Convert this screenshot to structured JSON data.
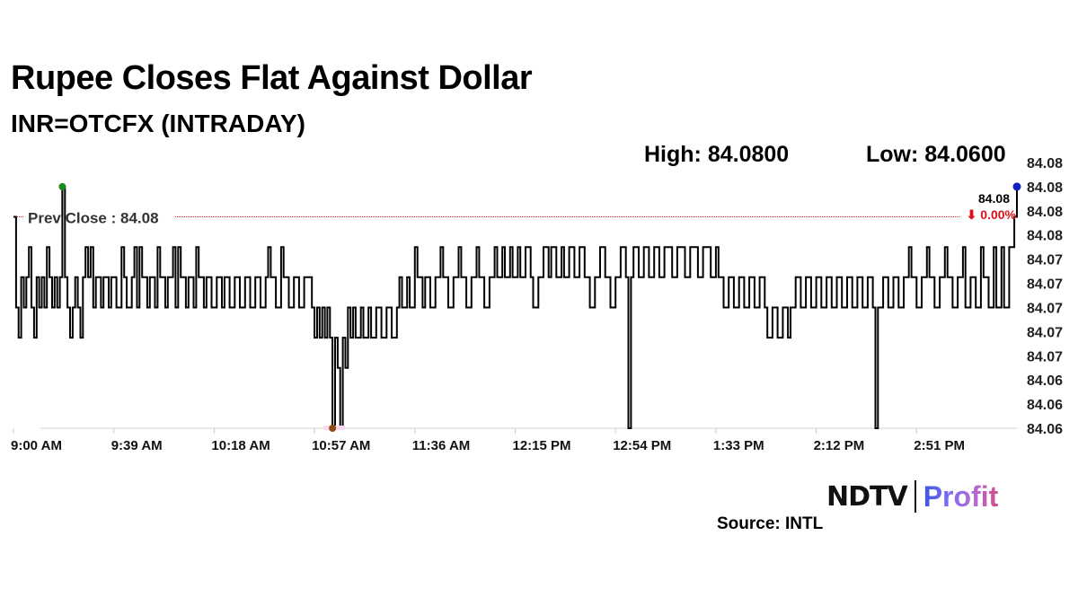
{
  "header": {
    "title": "Rupee Closes Flat Against Dollar",
    "subtitle": "INR=OTCFX (INTRADAY)",
    "high": "High: 84.0800",
    "low": "Low: 84.0600"
  },
  "footer": {
    "source": "Source: INTL",
    "logo_left": "NDTV",
    "logo_right": "Profit"
  },
  "chart_data": {
    "type": "line",
    "title": "Rupee Closes Flat Against Dollar",
    "subtitle": "INR=OTCFX (INTRADAY)",
    "xlabel": "",
    "ylabel": "",
    "ylim": [
      84.06,
      84.082
    ],
    "y_ticks": [
      84.06,
      84.062,
      84.064,
      84.066,
      84.068,
      84.07,
      84.072,
      84.074,
      84.076,
      84.078,
      84.08,
      84.082
    ],
    "y_tick_labels": [
      "84.06",
      "84.06",
      "84.06",
      "84.07",
      "84.07",
      "84.07",
      "84.07",
      "84.07",
      "84.08",
      "84.08",
      "84.08",
      "84.08"
    ],
    "x_tick_labels": [
      "9:00 AM",
      "9:39 AM",
      "10:18 AM",
      "10:57 AM",
      "11:36 AM",
      "12:15 PM",
      "12:54 PM",
      "1:33 PM",
      "2:12 PM",
      "2:51 PM"
    ],
    "grid": false,
    "colors": {
      "line": "#000000",
      "prev_close": "#e02020",
      "high_marker": "#1a8a1a",
      "low_marker": "#8b4a12",
      "last_marker": "#1020c0",
      "change": "#e0101a"
    },
    "prev_close": {
      "label": "Prev Close : 84.08",
      "value": 84.0775
    },
    "last": {
      "label": "84.08",
      "change": "⬇ 0.00%"
    },
    "high_point": [
      "9:19",
      84.08
    ],
    "low_point": [
      "11:04",
      84.06
    ],
    "points": [
      [
        "9:00",
        84.0775
      ],
      [
        "9:01",
        84.07
      ],
      [
        "9:02",
        84.0675
      ],
      [
        "9:03",
        84.0725
      ],
      [
        "9:04",
        84.07
      ],
      [
        "9:05",
        84.0725
      ],
      [
        "9:06",
        84.075
      ],
      [
        "9:07",
        84.07
      ],
      [
        "9:08",
        84.0675
      ],
      [
        "9:09",
        84.0725
      ],
      [
        "9:10",
        84.07
      ],
      [
        "9:11",
        84.0725
      ],
      [
        "9:12",
        84.07
      ],
      [
        "9:13",
        84.075
      ],
      [
        "9:14",
        84.0725
      ],
      [
        "9:15",
        84.07
      ],
      [
        "9:16",
        84.0725
      ],
      [
        "9:17",
        84.07
      ],
      [
        "9:18",
        84.0725
      ],
      [
        "9:19",
        84.08
      ],
      [
        "9:20",
        84.0725
      ],
      [
        "9:21",
        84.07
      ],
      [
        "9:22",
        84.0675
      ],
      [
        "9:23",
        84.07
      ],
      [
        "9:24",
        84.0725
      ],
      [
        "9:25",
        84.07
      ],
      [
        "9:26",
        84.0675
      ],
      [
        "9:27",
        84.0725
      ],
      [
        "9:28",
        84.075
      ],
      [
        "9:29",
        84.0725
      ],
      [
        "9:30",
        84.075
      ],
      [
        "9:31",
        84.07
      ],
      [
        "9:32",
        84.0725
      ],
      [
        "9:34",
        84.07
      ],
      [
        "9:35",
        84.0725
      ],
      [
        "9:37",
        84.07
      ],
      [
        "9:38",
        84.0725
      ],
      [
        "9:40",
        84.07
      ],
      [
        "9:42",
        84.075
      ],
      [
        "9:43",
        84.0725
      ],
      [
        "9:44",
        84.07
      ],
      [
        "9:46",
        84.0725
      ],
      [
        "9:47",
        84.075
      ],
      [
        "9:48",
        84.07
      ],
      [
        "9:49",
        84.075
      ],
      [
        "9:50",
        84.0725
      ],
      [
        "9:52",
        84.07
      ],
      [
        "9:53",
        84.0725
      ],
      [
        "9:55",
        84.07
      ],
      [
        "9:56",
        84.075
      ],
      [
        "9:57",
        84.0725
      ],
      [
        "9:59",
        84.07
      ],
      [
        "10:00",
        84.0725
      ],
      [
        "10:02",
        84.075
      ],
      [
        "10:03",
        84.07
      ],
      [
        "10:04",
        84.075
      ],
      [
        "10:05",
        84.0725
      ],
      [
        "10:07",
        84.07
      ],
      [
        "10:08",
        84.0725
      ],
      [
        "10:10",
        84.07
      ],
      [
        "10:11",
        84.075
      ],
      [
        "10:12",
        84.0725
      ],
      [
        "10:14",
        84.07
      ],
      [
        "10:15",
        84.0725
      ],
      [
        "10:17",
        84.07
      ],
      [
        "10:19",
        84.0725
      ],
      [
        "10:21",
        84.07
      ],
      [
        "10:22",
        84.0725
      ],
      [
        "10:24",
        84.07
      ],
      [
        "10:26",
        84.0725
      ],
      [
        "10:28",
        84.07
      ],
      [
        "10:30",
        84.0725
      ],
      [
        "10:32",
        84.07
      ],
      [
        "10:34",
        84.0725
      ],
      [
        "10:36",
        84.07
      ],
      [
        "10:38",
        84.0725
      ],
      [
        "10:39",
        84.075
      ],
      [
        "10:40",
        84.0725
      ],
      [
        "10:42",
        84.07
      ],
      [
        "10:44",
        84.075
      ],
      [
        "10:45",
        84.0725
      ],
      [
        "10:47",
        84.07
      ],
      [
        "10:49",
        84.0725
      ],
      [
        "10:51",
        84.07
      ],
      [
        "10:53",
        84.0725
      ],
      [
        "10:56",
        84.07
      ],
      [
        "10:57",
        84.0675
      ],
      [
        "10:58",
        84.07
      ],
      [
        "10:59",
        84.0675
      ],
      [
        "11:00",
        84.07
      ],
      [
        "11:01",
        84.0675
      ],
      [
        "11:02",
        84.07
      ],
      [
        "11:03",
        84.0675
      ],
      [
        "11:04",
        84.06
      ],
      [
        "11:05",
        84.0675
      ],
      [
        "11:06",
        84.065
      ],
      [
        "11:07",
        84.06
      ],
      [
        "11:08",
        84.0675
      ],
      [
        "11:09",
        84.065
      ],
      [
        "11:10",
        84.07
      ],
      [
        "11:11",
        84.0675
      ],
      [
        "11:12",
        84.07
      ],
      [
        "11:13",
        84.0675
      ],
      [
        "11:15",
        84.07
      ],
      [
        "11:16",
        84.0675
      ],
      [
        "11:18",
        84.07
      ],
      [
        "11:19",
        84.0675
      ],
      [
        "11:21",
        84.07
      ],
      [
        "11:23",
        84.0675
      ],
      [
        "11:25",
        84.07
      ],
      [
        "11:27",
        84.0675
      ],
      [
        "11:29",
        84.07
      ],
      [
        "11:30",
        84.0725
      ],
      [
        "11:31",
        84.07
      ],
      [
        "11:33",
        84.0725
      ],
      [
        "11:34",
        84.07
      ],
      [
        "11:36",
        84.075
      ],
      [
        "11:37",
        84.0725
      ],
      [
        "11:39",
        84.07
      ],
      [
        "11:40",
        84.0725
      ],
      [
        "11:42",
        84.07
      ],
      [
        "11:44",
        84.0725
      ],
      [
        "11:46",
        84.075
      ],
      [
        "11:47",
        84.0725
      ],
      [
        "11:49",
        84.07
      ],
      [
        "11:51",
        84.0725
      ],
      [
        "11:53",
        84.075
      ],
      [
        "11:54",
        84.0725
      ],
      [
        "11:56",
        84.07
      ],
      [
        "11:58",
        84.0725
      ],
      [
        "12:00",
        84.075
      ],
      [
        "12:01",
        84.0725
      ],
      [
        "12:03",
        84.07
      ],
      [
        "12:05",
        84.0725
      ],
      [
        "12:07",
        84.075
      ],
      [
        "12:08",
        84.0725
      ],
      [
        "12:10",
        84.075
      ],
      [
        "12:11",
        84.0725
      ],
      [
        "12:13",
        84.075
      ],
      [
        "12:14",
        84.0725
      ],
      [
        "12:16",
        84.075
      ],
      [
        "12:17",
        84.0725
      ],
      [
        "12:19",
        84.075
      ],
      [
        "12:21",
        84.0725
      ],
      [
        "12:22",
        84.07
      ],
      [
        "12:24",
        84.0725
      ],
      [
        "12:26",
        84.075
      ],
      [
        "12:28",
        84.0725
      ],
      [
        "12:29",
        84.075
      ],
      [
        "12:31",
        84.0725
      ],
      [
        "12:33",
        84.075
      ],
      [
        "12:34",
        84.0725
      ],
      [
        "12:36",
        84.075
      ],
      [
        "12:38",
        84.0725
      ],
      [
        "12:40",
        84.075
      ],
      [
        "12:42",
        84.0725
      ],
      [
        "12:44",
        84.07
      ],
      [
        "12:46",
        84.0725
      ],
      [
        "12:48",
        84.075
      ],
      [
        "12:50",
        84.0725
      ],
      [
        "12:52",
        84.07
      ],
      [
        "12:54",
        84.0725
      ],
      [
        "12:56",
        84.075
      ],
      [
        "12:58",
        84.0725
      ],
      [
        "12:59",
        84.06
      ],
      [
        "13:00",
        84.0725
      ],
      [
        "13:01",
        84.075
      ],
      [
        "13:03",
        84.0725
      ],
      [
        "13:05",
        84.075
      ],
      [
        "13:07",
        84.0725
      ],
      [
        "13:09",
        84.075
      ],
      [
        "13:11",
        84.0725
      ],
      [
        "13:13",
        84.075
      ],
      [
        "13:16",
        84.0725
      ],
      [
        "13:18",
        84.075
      ],
      [
        "13:21",
        84.0725
      ],
      [
        "13:23",
        84.075
      ],
      [
        "13:26",
        84.0725
      ],
      [
        "13:28",
        84.075
      ],
      [
        "13:31",
        84.0725
      ],
      [
        "13:33",
        84.075
      ],
      [
        "13:34",
        84.0725
      ],
      [
        "13:36",
        84.07
      ],
      [
        "13:38",
        84.0725
      ],
      [
        "13:40",
        84.07
      ],
      [
        "13:42",
        84.0725
      ],
      [
        "13:44",
        84.07
      ],
      [
        "13:46",
        84.0725
      ],
      [
        "13:48",
        84.07
      ],
      [
        "13:50",
        84.0725
      ],
      [
        "13:52",
        84.07
      ],
      [
        "13:53",
        84.0675
      ],
      [
        "13:55",
        84.07
      ],
      [
        "13:57",
        84.0675
      ],
      [
        "13:59",
        84.07
      ],
      [
        "14:01",
        84.0675
      ],
      [
        "14:02",
        84.07
      ],
      [
        "14:04",
        84.0725
      ],
      [
        "14:06",
        84.07
      ],
      [
        "14:08",
        84.0725
      ],
      [
        "14:10",
        84.07
      ],
      [
        "14:12",
        84.0725
      ],
      [
        "14:14",
        84.07
      ],
      [
        "14:16",
        84.0725
      ],
      [
        "14:18",
        84.07
      ],
      [
        "14:20",
        84.0725
      ],
      [
        "14:22",
        84.07
      ],
      [
        "14:24",
        84.0725
      ],
      [
        "14:26",
        84.07
      ],
      [
        "14:28",
        84.0725
      ],
      [
        "14:30",
        84.07
      ],
      [
        "14:32",
        84.0725
      ],
      [
        "14:34",
        84.07
      ],
      [
        "14:35",
        84.06
      ],
      [
        "14:36",
        84.07
      ],
      [
        "14:38",
        84.0725
      ],
      [
        "14:40",
        84.07
      ],
      [
        "14:42",
        84.0725
      ],
      [
        "14:44",
        84.07
      ],
      [
        "14:46",
        84.0725
      ],
      [
        "14:48",
        84.075
      ],
      [
        "14:49",
        84.0725
      ],
      [
        "14:51",
        84.07
      ],
      [
        "14:53",
        84.0725
      ],
      [
        "14:55",
        84.075
      ],
      [
        "14:56",
        84.0725
      ],
      [
        "14:58",
        84.07
      ],
      [
        "15:00",
        84.0725
      ],
      [
        "15:02",
        84.075
      ],
      [
        "15:03",
        84.0725
      ],
      [
        "15:05",
        84.07
      ],
      [
        "15:07",
        84.0725
      ],
      [
        "15:09",
        84.075
      ],
      [
        "15:10",
        84.07
      ],
      [
        "15:12",
        84.0725
      ],
      [
        "15:14",
        84.07
      ],
      [
        "15:16",
        84.075
      ],
      [
        "15:17",
        84.0725
      ],
      [
        "15:19",
        84.07
      ],
      [
        "15:21",
        84.075
      ],
      [
        "15:22",
        84.07
      ],
      [
        "15:24",
        84.075
      ],
      [
        "15:25",
        84.07
      ],
      [
        "15:27",
        84.075
      ],
      [
        "15:29",
        84.0775
      ],
      [
        "15:30",
        84.08
      ]
    ]
  }
}
